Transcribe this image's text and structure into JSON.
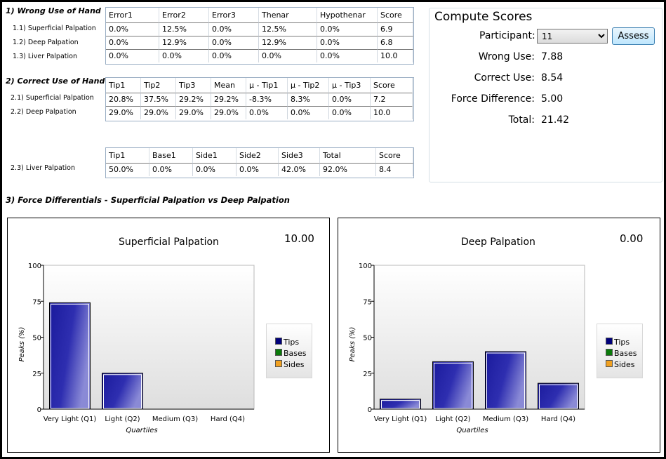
{
  "wrong": {
    "heading": "1) Wrong Use of Hand",
    "rows": [
      "1.1) Superficial Palpation",
      "1.2) Deep Palpation",
      "1.3) Liver Palpation"
    ],
    "table": {
      "headers": [
        "Error1",
        "Error2",
        "Error3",
        "Thenar",
        "Hypothenar",
        "Score"
      ],
      "rows": [
        [
          "0.0%",
          "12.5%",
          "0.0%",
          "12.5%",
          "0.0%",
          "6.9"
        ],
        [
          "0.0%",
          "12.9%",
          "0.0%",
          "12.9%",
          "0.0%",
          "6.8"
        ],
        [
          "0.0%",
          "0.0%",
          "0.0%",
          "0.0%",
          "0.0%",
          "10.0"
        ]
      ]
    }
  },
  "correct": {
    "heading": "2) Correct Use of Hand",
    "rows": [
      "2.1) Superficial Palpation",
      "2.2) Deep Palpation"
    ],
    "table": {
      "headers": [
        "Tip1",
        "Tip2",
        "Tip3",
        "Mean",
        "µ - Tip1",
        "µ - Tip2",
        "µ - Tip3",
        "Score"
      ],
      "rows": [
        [
          "20.8%",
          "37.5%",
          "29.2%",
          "29.2%",
          "-8.3%",
          "8.3%",
          "0.0%",
          "7.2"
        ],
        [
          "29.0%",
          "29.0%",
          "29.0%",
          "29.0%",
          "0.0%",
          "0.0%",
          "0.0%",
          "10.0"
        ]
      ]
    },
    "liver_label": "2.3) Liver Palpation",
    "liver_table": {
      "headers": [
        "Tip1",
        "Base1",
        "Side1",
        "Side2",
        "Side3",
        "Total",
        "Score"
      ],
      "rows": [
        [
          "50.0%",
          "0.0%",
          "0.0%",
          "0.0%",
          "42.0%",
          "92.0%",
          "8.4"
        ]
      ]
    }
  },
  "force": {
    "heading": "3) Force Differentials - Superficial Palpation vs Deep Palpation"
  },
  "compute": {
    "title": "Compute Scores",
    "participant_label": "Participant:",
    "participant_value": "11",
    "assess_label": "Assess",
    "wrong_use_label": "Wrong Use:",
    "wrong_use_value": "7.88",
    "correct_use_label": "Correct Use:",
    "correct_use_value": "8.54",
    "force_diff_label": "Force Difference:",
    "force_diff_value": "5.00",
    "total_label": "Total:",
    "total_value": "21.42"
  },
  "legend": {
    "items": [
      {
        "name": "Tips",
        "color": "#00007a"
      },
      {
        "name": "Bases",
        "color": "#0a7a0a"
      },
      {
        "name": "Sides",
        "color": "#f0a020"
      }
    ]
  },
  "chart_data": [
    {
      "type": "bar",
      "title": "Superficial Palpation",
      "score": "10.00",
      "categories": [
        "Very Light (Q1)",
        "Light (Q2)",
        "Medium (Q3)",
        "Hard (Q4)"
      ],
      "values": [
        74,
        25,
        0,
        0
      ],
      "xlabel": "Quartiles",
      "ylabel": "Peaks (%)",
      "ylim": [
        0,
        100
      ],
      "yticks": [
        0,
        25,
        50,
        75,
        100
      ],
      "legend": "right",
      "bar_color": "#1a1a9c"
    },
    {
      "type": "bar",
      "title": "Deep Palpation",
      "score": "0.00",
      "categories": [
        "Very Light (Q1)",
        "Light (Q2)",
        "Medium (Q3)",
        "Hard (Q4)"
      ],
      "values": [
        7,
        33,
        40,
        18
      ],
      "xlabel": "Quartiles",
      "ylabel": "Peaks (%)",
      "ylim": [
        0,
        100
      ],
      "yticks": [
        0,
        25,
        50,
        75,
        100
      ],
      "legend": "right",
      "bar_color": "#1a1a9c"
    }
  ]
}
